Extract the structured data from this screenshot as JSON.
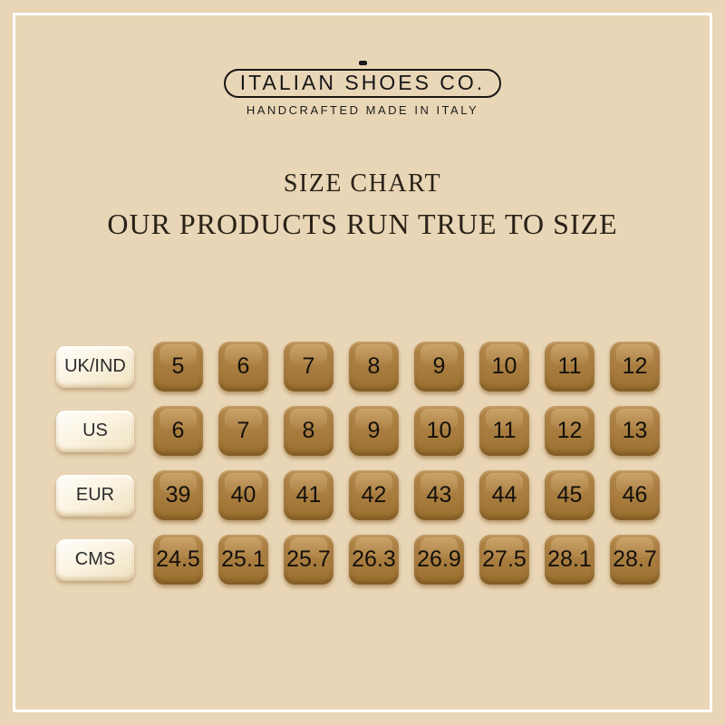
{
  "page": {
    "background_color": "#e9d6b6",
    "frame_color": "#ffffff"
  },
  "brand": {
    "name": "ITALIAN SHOES CO.",
    "tagline": "HANDCRAFTED MADE IN ITALY"
  },
  "heading": {
    "title": "SIZE CHART",
    "subtitle": "OUR PRODUCTS RUN TRUE TO SIZE"
  },
  "colors": {
    "cell_brown": "#a87c3e",
    "cell_brown_light": "#b3874a",
    "cell_brown_dark": "#99702f",
    "label_cream": "#faf3e0",
    "text_dark": "#161616"
  },
  "chart_data": {
    "type": "table",
    "title": "SIZE CHART",
    "subtitle": "OUR PRODUCTS RUN TRUE TO SIZE",
    "row_labels": [
      "UK/IND",
      "US",
      "EUR",
      "CMS"
    ],
    "rows": [
      {
        "label": "UK/IND",
        "values": [
          "5",
          "6",
          "7",
          "8",
          "9",
          "10",
          "11",
          "12"
        ]
      },
      {
        "label": "US",
        "values": [
          "6",
          "7",
          "8",
          "9",
          "10",
          "11",
          "12",
          "13"
        ]
      },
      {
        "label": "EUR",
        "values": [
          "39",
          "40",
          "41",
          "42",
          "43",
          "44",
          "45",
          "46"
        ]
      },
      {
        "label": "CMS",
        "values": [
          "24.5",
          "25.1",
          "25.7",
          "26.3",
          "26.9",
          "27.5",
          "28.1",
          "28.7"
        ]
      }
    ]
  }
}
